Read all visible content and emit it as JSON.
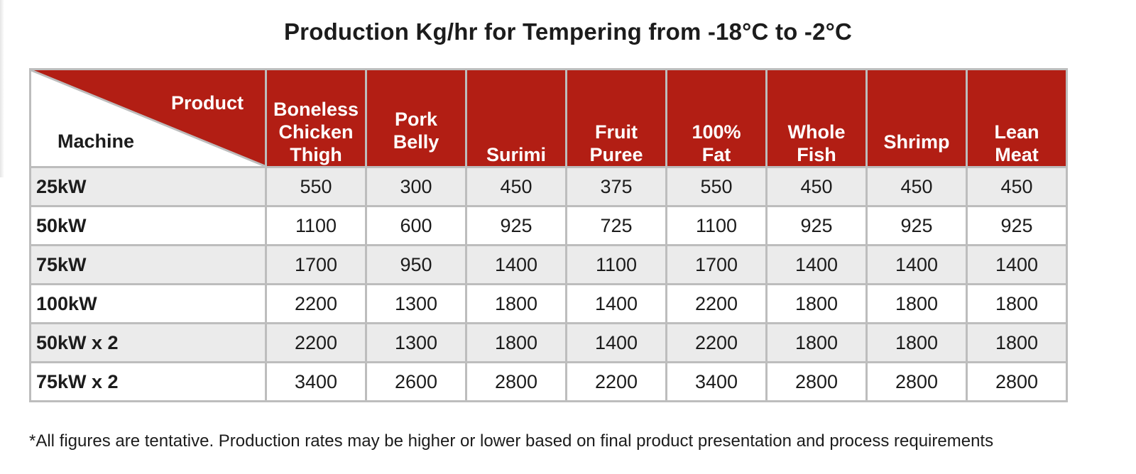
{
  "title": "Production Kg/hr for Tempering from -18°C to -2°C",
  "table": {
    "corner_product_label": "Product",
    "corner_machine_label": "Machine",
    "columns": [
      {
        "line1": "Boneless",
        "line2": "Chicken",
        "line3": "Thigh"
      },
      {
        "line1": "Pork",
        "line2": "Belly",
        "line3": ""
      },
      {
        "line1": "Surimi",
        "line2": "",
        "line3": ""
      },
      {
        "line1": "Fruit",
        "line2": "Puree",
        "line3": ""
      },
      {
        "line1": "100%",
        "line2": "Fat",
        "line3": ""
      },
      {
        "line1": "Whole",
        "line2": "Fish",
        "line3": ""
      },
      {
        "line1": "Shrimp",
        "line2": "",
        "line3": ""
      },
      {
        "line1": "Lean",
        "line2": "Meat",
        "line3": ""
      }
    ],
    "rows": [
      {
        "machine": "25kW",
        "values": [
          "550",
          "300",
          "450",
          "375",
          "550",
          "450",
          "450",
          "450"
        ]
      },
      {
        "machine": "50kW",
        "values": [
          "1100",
          "600",
          "925",
          "725",
          "1100",
          "925",
          "925",
          "925"
        ]
      },
      {
        "machine": "75kW",
        "values": [
          "1700",
          "950",
          "1400",
          "1100",
          "1700",
          "1400",
          "1400",
          "1400"
        ]
      },
      {
        "machine": "100kW",
        "values": [
          "2200",
          "1300",
          "1800",
          "1400",
          "2200",
          "1800",
          "1800",
          "1800"
        ]
      },
      {
        "machine": "50kW x 2",
        "values": [
          "2200",
          "1300",
          "1800",
          "1400",
          "2200",
          "1800",
          "1800",
          "1800"
        ]
      },
      {
        "machine": "75kW x 2",
        "values": [
          "3400",
          "2600",
          "2800",
          "2200",
          "3400",
          "2800",
          "2800",
          "2800"
        ]
      }
    ]
  },
  "footnote": "*All figures are tentative. Production rates may be higher or lower based on final product presentation and process requirements",
  "colors": {
    "header_red": "#b21e14",
    "row_shade": "#ebebeb",
    "border_gray": "#bdbdbd"
  }
}
